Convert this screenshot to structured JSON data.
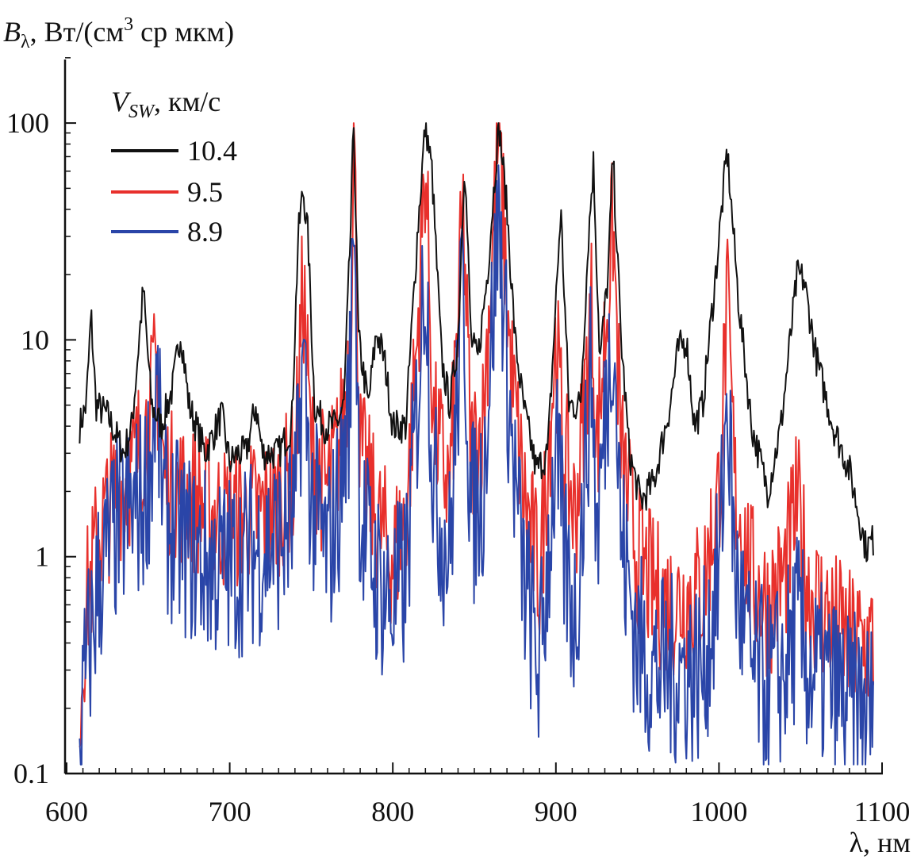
{
  "chart_data": {
    "type": "line",
    "title": "",
    "ylabel": {
      "symbol": "B",
      "subscript": "λ",
      "units_pre": ", Вт/(см",
      "units_sup": "3",
      "units_post": " ср мкм)"
    },
    "xlabel": "λ, нм",
    "xlim": [
      600,
      1100
    ],
    "ylim": [
      0.1,
      200
    ],
    "yscale": "log",
    "grid": false,
    "x_ticks": [
      "600",
      "700",
      "800",
      "900",
      "1000",
      "1100"
    ],
    "x_tick_values": [
      600,
      700,
      800,
      900,
      1000,
      1100
    ],
    "y_ticks": [
      "0.1",
      "1",
      "10",
      "100"
    ],
    "y_tick_values": [
      0.1,
      1,
      10,
      100
    ],
    "legend": {
      "placement": "top-left",
      "title_symbol": "V",
      "title_subscript": "SW",
      "title_units": ", км/с"
    },
    "series": [
      {
        "name": "10.4",
        "color": "#111111",
        "points": [
          [
            608,
            4
          ],
          [
            612,
            5
          ],
          [
            615,
            13
          ],
          [
            618,
            5
          ],
          [
            625,
            4.5
          ],
          [
            635,
            3
          ],
          [
            640,
            4
          ],
          [
            647,
            17
          ],
          [
            652,
            5
          ],
          [
            658,
            4
          ],
          [
            665,
            6
          ],
          [
            670,
            11
          ],
          [
            675,
            5
          ],
          [
            685,
            3
          ],
          [
            695,
            4.5
          ],
          [
            700,
            2.7
          ],
          [
            705,
            3
          ],
          [
            710,
            3
          ],
          [
            716,
            5
          ],
          [
            720,
            3
          ],
          [
            730,
            3
          ],
          [
            738,
            4
          ],
          [
            742,
            30
          ],
          [
            745,
            50
          ],
          [
            748,
            30
          ],
          [
            752,
            5
          ],
          [
            758,
            4
          ],
          [
            765,
            4
          ],
          [
            770,
            5
          ],
          [
            774,
            30
          ],
          [
            776,
            100
          ],
          [
            779,
            10
          ],
          [
            785,
            5
          ],
          [
            790,
            11
          ],
          [
            795,
            8
          ],
          [
            800,
            4
          ],
          [
            808,
            4
          ],
          [
            815,
            30
          ],
          [
            820,
            100
          ],
          [
            824,
            60
          ],
          [
            830,
            8
          ],
          [
            835,
            5
          ],
          [
            840,
            10
          ],
          [
            844,
            70
          ],
          [
            848,
            10
          ],
          [
            852,
            8
          ],
          [
            858,
            20
          ],
          [
            865,
            100
          ],
          [
            870,
            40
          ],
          [
            875,
            10
          ],
          [
            880,
            5
          ],
          [
            888,
            2.5
          ],
          [
            895,
            3
          ],
          [
            903,
            40
          ],
          [
            908,
            5
          ],
          [
            915,
            5
          ],
          [
            920,
            30
          ],
          [
            923,
            65
          ],
          [
            927,
            8
          ],
          [
            932,
            20
          ],
          [
            935,
            70
          ],
          [
            940,
            10
          ],
          [
            945,
            3
          ],
          [
            952,
            1.8
          ],
          [
            960,
            2.2
          ],
          [
            970,
            5
          ],
          [
            975,
            9
          ],
          [
            980,
            10
          ],
          [
            985,
            4
          ],
          [
            990,
            5
          ],
          [
            998,
            20
          ],
          [
            1005,
            75
          ],
          [
            1012,
            15
          ],
          [
            1020,
            4
          ],
          [
            1030,
            2
          ],
          [
            1038,
            4
          ],
          [
            1048,
            20
          ],
          [
            1052,
            19
          ],
          [
            1060,
            8
          ],
          [
            1070,
            4
          ],
          [
            1080,
            2.5
          ],
          [
            1090,
            1.1
          ],
          [
            1095,
            1.2
          ]
        ]
      },
      {
        "name": "9.5",
        "color": "#e8302c",
        "points": [
          [
            608,
            0.2
          ],
          [
            612,
            0.6
          ],
          [
            620,
            1.3
          ],
          [
            630,
            2
          ],
          [
            640,
            2.5
          ],
          [
            647,
            3.5
          ],
          [
            652,
            5
          ],
          [
            655,
            8
          ],
          [
            660,
            2.3
          ],
          [
            670,
            2
          ],
          [
            680,
            1.8
          ],
          [
            690,
            1.6
          ],
          [
            700,
            1.5
          ],
          [
            710,
            1.6
          ],
          [
            720,
            1.6
          ],
          [
            730,
            1.8
          ],
          [
            740,
            2.5
          ],
          [
            745,
            19
          ],
          [
            750,
            3
          ],
          [
            760,
            2
          ],
          [
            768,
            3.5
          ],
          [
            774,
            10
          ],
          [
            776,
            100
          ],
          [
            780,
            3
          ],
          [
            790,
            1.5
          ],
          [
            800,
            1.0
          ],
          [
            808,
            1.5
          ],
          [
            815,
            10
          ],
          [
            820,
            70
          ],
          [
            825,
            4
          ],
          [
            835,
            2
          ],
          [
            843,
            40
          ],
          [
            848,
            3
          ],
          [
            855,
            4
          ],
          [
            865,
            90
          ],
          [
            872,
            8
          ],
          [
            880,
            2
          ],
          [
            890,
            0.8
          ],
          [
            900,
            10
          ],
          [
            905,
            3
          ],
          [
            912,
            1.5
          ],
          [
            922,
            15
          ],
          [
            925,
            3
          ],
          [
            935,
            35
          ],
          [
            940,
            3
          ],
          [
            950,
            1
          ],
          [
            960,
            0.7
          ],
          [
            970,
            0.6
          ],
          [
            990,
            0.7
          ],
          [
            1000,
            2
          ],
          [
            1005,
            15
          ],
          [
            1010,
            2
          ],
          [
            1020,
            0.8
          ],
          [
            1030,
            0.6
          ],
          [
            1040,
            0.8
          ],
          [
            1048,
            1.8
          ],
          [
            1055,
            0.7
          ],
          [
            1070,
            0.5
          ],
          [
            1080,
            0.4
          ],
          [
            1095,
            0.4
          ]
        ]
      },
      {
        "name": "8.9",
        "color": "#2a45a8",
        "points": [
          [
            608,
            0.13
          ],
          [
            612,
            0.3
          ],
          [
            620,
            0.8
          ],
          [
            630,
            1.3
          ],
          [
            640,
            1.6
          ],
          [
            647,
            1.8
          ],
          [
            652,
            3
          ],
          [
            655,
            6
          ],
          [
            660,
            1.5
          ],
          [
            670,
            1.2
          ],
          [
            680,
            1.0
          ],
          [
            690,
            0.9
          ],
          [
            700,
            0.9
          ],
          [
            710,
            1.0
          ],
          [
            720,
            1.1
          ],
          [
            730,
            1.2
          ],
          [
            740,
            1.5
          ],
          [
            745,
            8.5
          ],
          [
            750,
            1.8
          ],
          [
            760,
            1.0
          ],
          [
            768,
            2
          ],
          [
            774,
            6
          ],
          [
            776,
            55
          ],
          [
            780,
            1.5
          ],
          [
            790,
            0.8
          ],
          [
            800,
            0.6
          ],
          [
            808,
            0.8
          ],
          [
            815,
            5
          ],
          [
            820,
            25
          ],
          [
            825,
            2
          ],
          [
            835,
            1.0
          ],
          [
            843,
            20
          ],
          [
            848,
            1.5
          ],
          [
            855,
            2
          ],
          [
            865,
            40
          ],
          [
            872,
            4
          ],
          [
            880,
            0.8
          ],
          [
            890,
            0.3
          ],
          [
            900,
            3
          ],
          [
            905,
            1
          ],
          [
            912,
            0.5
          ],
          [
            922,
            8
          ],
          [
            925,
            1.2
          ],
          [
            935,
            14
          ],
          [
            940,
            1.2
          ],
          [
            950,
            0.4
          ],
          [
            960,
            0.3
          ],
          [
            970,
            0.3
          ],
          [
            990,
            0.3
          ],
          [
            1000,
            0.8
          ],
          [
            1005,
            6
          ],
          [
            1010,
            0.8
          ],
          [
            1020,
            0.3
          ],
          [
            1030,
            0.25
          ],
          [
            1040,
            0.3
          ],
          [
            1048,
            0.5
          ],
          [
            1055,
            0.3
          ],
          [
            1070,
            0.25
          ],
          [
            1080,
            0.2
          ],
          [
            1095,
            0.2
          ]
        ]
      }
    ]
  }
}
